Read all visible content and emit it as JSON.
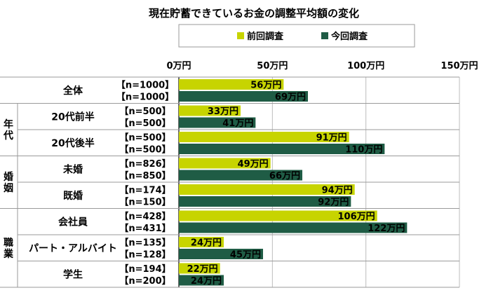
{
  "chart_data": {
    "type": "bar",
    "orientation": "horizontal",
    "title": "現在貯蓄できているお金の調整平均額の変化",
    "legend": {
      "position": "top-right"
    },
    "xlim": [
      0,
      150
    ],
    "xticks": [
      "0万円",
      "50万円",
      "100万円",
      "150万円"
    ],
    "tick_values": [
      0,
      50,
      100,
      150
    ],
    "grid": true,
    "series": [
      {
        "name": "前回調査",
        "color": "#c7d400"
      },
      {
        "name": "今回調査",
        "color": "#1f5c45"
      }
    ],
    "groups": [
      {
        "label": "年代",
        "rows": [
          1,
          2
        ]
      },
      {
        "label": "婚姻",
        "rows": [
          3,
          4
        ]
      },
      {
        "label": "職業",
        "rows": [
          5,
          6,
          7
        ]
      }
    ],
    "categories": [
      {
        "label": "全体",
        "n": [
          "【n=1000】",
          "【n=1000】"
        ],
        "values": [
          56,
          69
        ],
        "value_labels": [
          "56万円",
          "69万円"
        ]
      },
      {
        "label": "20代前半",
        "n": [
          "【n=500】",
          "【n=500】"
        ],
        "values": [
          33,
          41
        ],
        "value_labels": [
          "33万円",
          "41万円"
        ]
      },
      {
        "label": "20代後半",
        "n": [
          "【n=500】",
          "【n=500】"
        ],
        "values": [
          91,
          110
        ],
        "value_labels": [
          "91万円",
          "110万円"
        ]
      },
      {
        "label": "未婚",
        "n": [
          "【n=826】",
          "【n=850】"
        ],
        "values": [
          49,
          66
        ],
        "value_labels": [
          "49万円",
          "66万円"
        ]
      },
      {
        "label": "既婚",
        "n": [
          "【n=174】",
          "【n=150】"
        ],
        "values": [
          94,
          92
        ],
        "value_labels": [
          "94万円",
          "92万円"
        ]
      },
      {
        "label": "会社員",
        "n": [
          "【n=428】",
          "【n=431】"
        ],
        "values": [
          106,
          122
        ],
        "value_labels": [
          "106万円",
          "122万円"
        ]
      },
      {
        "label": "パート・アルバイト",
        "n": [
          "【n=135】",
          "【n=128】"
        ],
        "values": [
          24,
          45
        ],
        "value_labels": [
          "24万円",
          "45万円"
        ]
      },
      {
        "label": "学生",
        "n": [
          "【n=194】",
          "【n=200】"
        ],
        "values": [
          22,
          24
        ],
        "value_labels": [
          "22万円",
          "24万円"
        ]
      }
    ]
  }
}
